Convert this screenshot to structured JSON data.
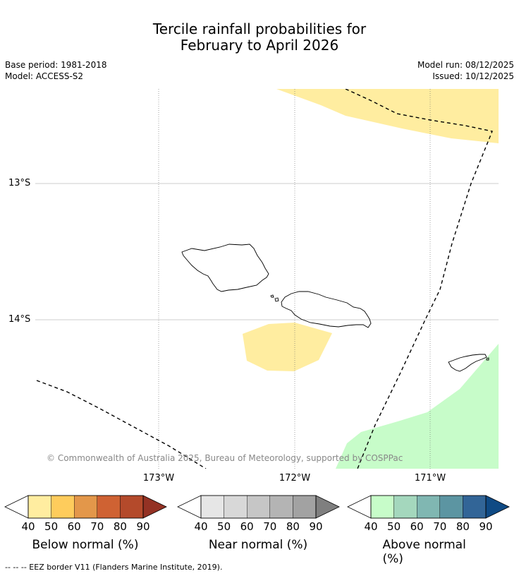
{
  "header": {
    "title_line1": "Tercile rainfall probabilities for",
    "title_line2": "February to April 2026",
    "base_period": "Base period: 1981-2018",
    "model": "Model: ACCESS-S2",
    "model_run": "Model run: 08/12/2025",
    "issued": "Issued: 10/12/2025"
  },
  "map": {
    "lat_labels": [
      "13°S",
      "14°S"
    ],
    "lon_labels": [
      "173°W",
      "172°W",
      "171°W"
    ],
    "copyright": "© Commonwealth of Australia 2025, Bureau of Meteorology, supported by COSPPac",
    "colors": {
      "below_region": "#ffeda0",
      "above_region": "#c7fcc9",
      "coastline": "#000000",
      "grid": "#bbbbbb"
    }
  },
  "legend": {
    "below": {
      "title": "Below normal (%)",
      "ticks": [
        "40",
        "50",
        "60",
        "70",
        "80",
        "90"
      ],
      "colors": [
        "#ffeda0",
        "#fecc5c",
        "#e3974a",
        "#cf6233",
        "#b44a2b",
        "#943224"
      ]
    },
    "near": {
      "title": "Near normal (%)",
      "ticks": [
        "40",
        "50",
        "60",
        "70",
        "80",
        "90"
      ],
      "colors": [
        "#e6e6e6",
        "#d8d8d8",
        "#c6c6c6",
        "#b4b4b4",
        "#a2a2a2",
        "#7f7f7f"
      ]
    },
    "above": {
      "title": "Above normal (%)",
      "ticks": [
        "40",
        "50",
        "60",
        "70",
        "80",
        "90"
      ],
      "colors": [
        "#c7fcc9",
        "#a4d7bd",
        "#80b7b2",
        "#5c95a2",
        "#326597",
        "#0f4a84"
      ]
    }
  },
  "footnote": "--  --  -- EEZ border V11 (Flanders Marine Institute, 2019)."
}
